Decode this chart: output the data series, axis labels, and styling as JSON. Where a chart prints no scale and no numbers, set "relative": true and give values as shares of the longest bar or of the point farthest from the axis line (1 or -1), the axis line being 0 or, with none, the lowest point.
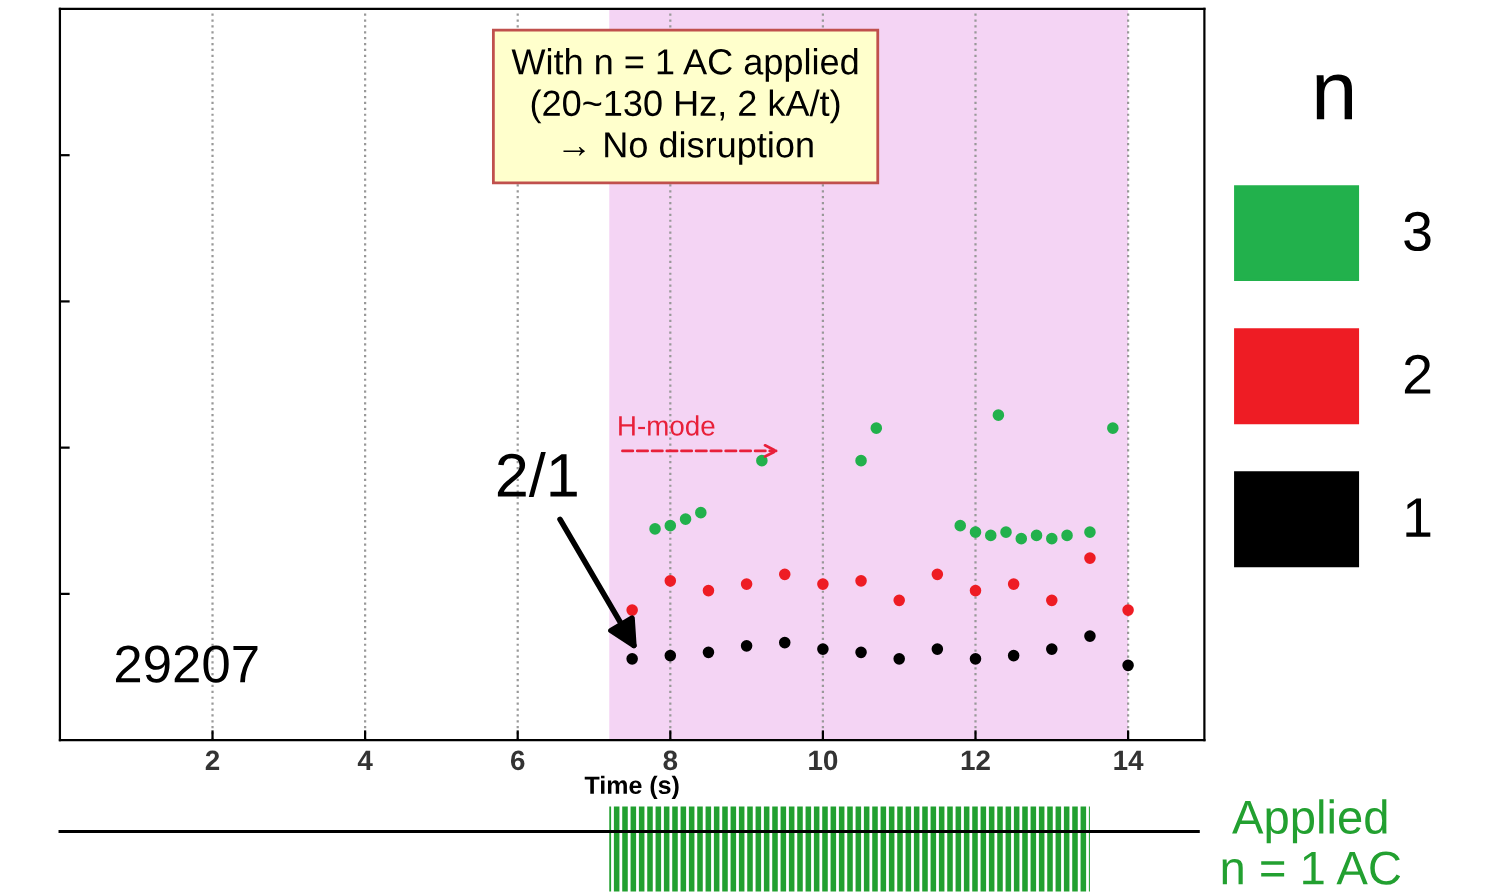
{
  "chart_data": {
    "type": "scatter",
    "relative": true,
    "xlabel": "Time (s)",
    "xlim": [
      0,
      15
    ],
    "xticks": [
      2,
      4,
      6,
      8,
      10,
      12,
      14
    ],
    "grid": "x",
    "legend": "right",
    "legend_title": "n",
    "marker": "circle",
    "bands": [
      {
        "axis": "x",
        "from": 7.2,
        "to": 14,
        "color": "#f4d4f4"
      }
    ],
    "series": [
      {
        "name": "3",
        "color": "#22b14c",
        "x": [
          7.8,
          8.0,
          8.2,
          8.4,
          9.2,
          10.5,
          10.7,
          11.8,
          12.0,
          12.2,
          12.3,
          12.4,
          12.6,
          12.8,
          13.0,
          13.2,
          13.5,
          13.8
        ],
        "values": [
          0.65,
          0.66,
          0.68,
          0.7,
          0.86,
          0.86,
          0.96,
          0.66,
          0.64,
          0.63,
          1.0,
          0.64,
          0.62,
          0.63,
          0.62,
          0.63,
          0.64,
          0.96
        ]
      },
      {
        "name": "2",
        "color": "#ee1c24",
        "x": [
          7.5,
          8.0,
          8.5,
          9.0,
          9.5,
          10.0,
          10.5,
          11.0,
          11.5,
          12.0,
          12.5,
          13.0,
          13.5,
          14.0
        ],
        "values": [
          0.4,
          0.49,
          0.46,
          0.48,
          0.51,
          0.48,
          0.49,
          0.43,
          0.51,
          0.46,
          0.48,
          0.43,
          0.56,
          0.4
        ]
      },
      {
        "name": "1",
        "color": "#000000",
        "x": [
          7.5,
          8.0,
          8.5,
          9.0,
          9.5,
          10.0,
          10.5,
          11.0,
          11.5,
          12.0,
          12.5,
          13.0,
          13.5,
          14.0
        ],
        "values": [
          0.25,
          0.26,
          0.27,
          0.29,
          0.3,
          0.28,
          0.27,
          0.25,
          0.28,
          0.25,
          0.26,
          0.28,
          0.32,
          0.23
        ]
      }
    ],
    "annotations": [
      "With n = 1 AC applied\n(20~130 Hz, 2 kA/t)\n→ No disruption",
      {
        "text": "H-mode",
        "x": 7.3,
        "y": 0.92
      },
      {
        "text": "2/1",
        "x": 7.6,
        "y": 0.26
      },
      "29207",
      "Applied\nn = 1 AC"
    ]
  }
}
